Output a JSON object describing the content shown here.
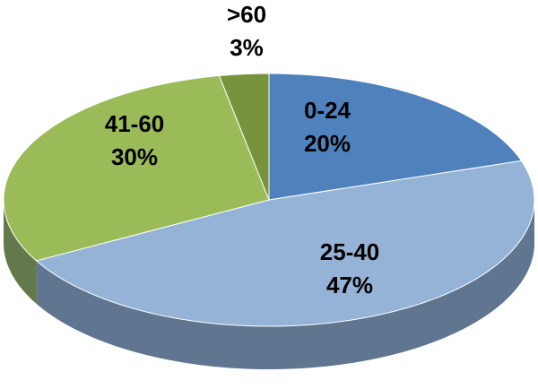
{
  "chart_data": {
    "type": "pie",
    "categories": [
      "0-24",
      "25-40",
      "41-60",
      ">60"
    ],
    "values": [
      20,
      47,
      30,
      3
    ],
    "value_labels": [
      "20%",
      "47%",
      "30%",
      "3%"
    ],
    "colors": [
      "#4f81bd",
      "#95b3d7",
      "#9bbb59",
      "#77933c"
    ]
  }
}
